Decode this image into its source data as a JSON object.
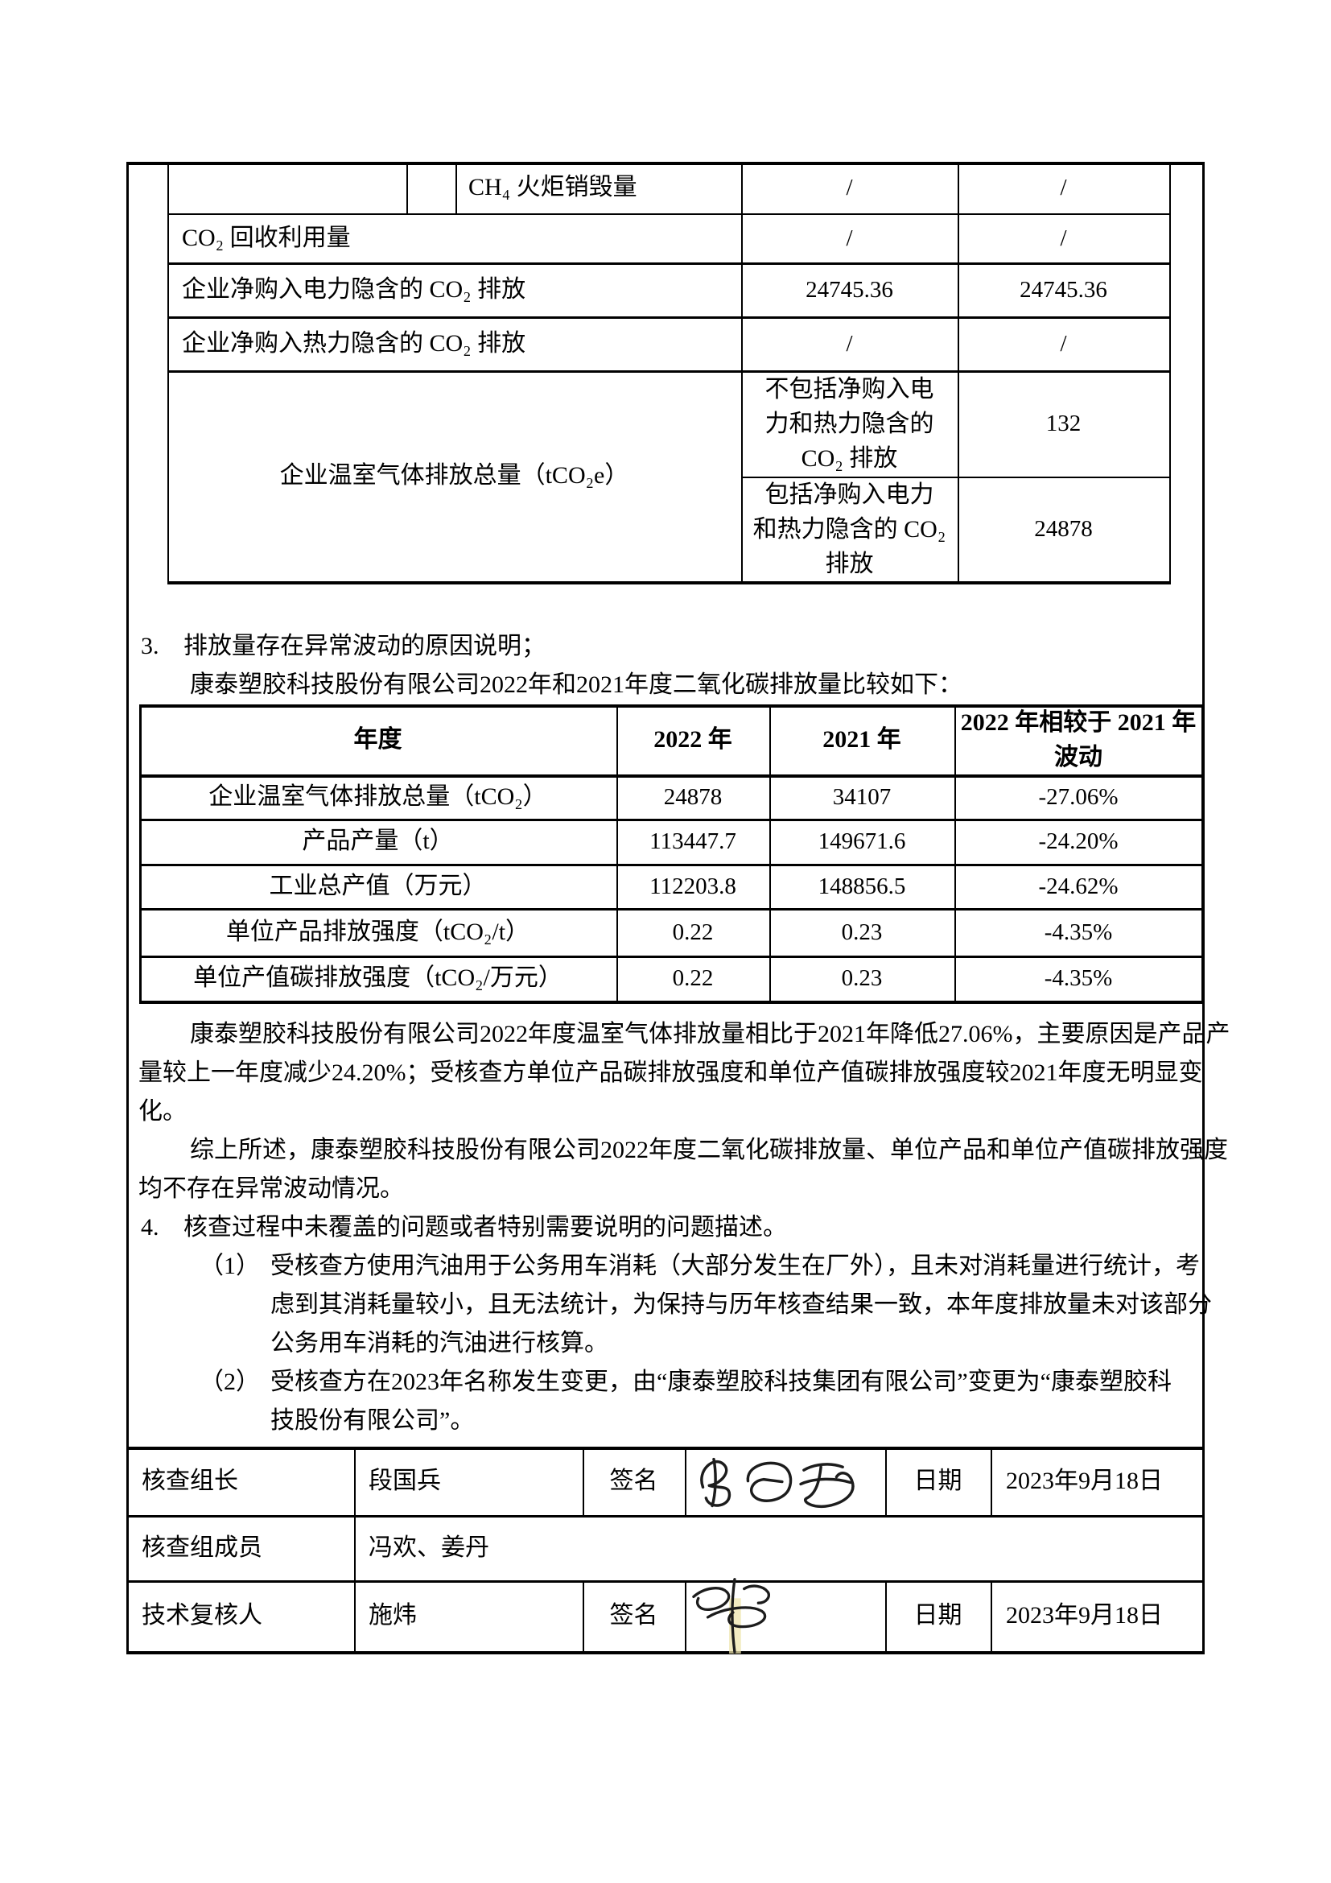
{
  "document": {
    "language": "zh-CN",
    "kind": "温室气体核查报告页"
  },
  "colors": {
    "text": "#000000",
    "border": "#000000",
    "background": "#ffffff",
    "signature_ink": "#1c1c1c",
    "signature_highlight": "#eee4ac"
  },
  "emissions_table": {
    "row1": {
      "label": "CH₄ 火炬销毁量",
      "v1": "/",
      "v2": "/"
    },
    "row2": {
      "label": "CO₂ 回收利用量",
      "v1": "/",
      "v2": "/"
    },
    "row3": {
      "label": "企业净购入电力隐含的 CO₂ 排放",
      "v1": "24745.36",
      "v2": "24745.36"
    },
    "row4": {
      "label": "企业净购入热力隐含的 CO₂ 排放",
      "v1": "/",
      "v2": "/"
    },
    "row5": {
      "label": "企业温室气体排放总量（tCO₂e）",
      "excl": {
        "l1": "不包括净购入电",
        "l2": "力和热力隐含的",
        "l3": "CO₂ 排放",
        "value": "132"
      },
      "incl": {
        "l1": "包括净购入电力",
        "l2": "和热力隐含的 CO₂",
        "l3": "排放",
        "value": "24878"
      }
    }
  },
  "section3": {
    "number": "3.",
    "title": "排放量存在异常波动的原因说明；",
    "intro": "康泰塑胶科技股份有限公司2022年和2021年度二氧化碳排放量比较如下："
  },
  "chart_data": {
    "type": "table",
    "title": "2022年和2021年度二氧化碳排放量比较",
    "columns": [
      "年度",
      "2022 年",
      "2021 年",
      "2022 年相较于 2021 年波动"
    ],
    "rows": [
      [
        "企业温室气体排放总量（tCO₂）",
        "24878",
        "34107",
        "-27.06%"
      ],
      [
        "产品产量（t）",
        "113447.7",
        "149671.6",
        "-24.20%"
      ],
      [
        "工业总产值（万元）",
        "112203.8",
        "148856.5",
        "-24.62%"
      ],
      [
        "单位产品排放强度（tCO₂/t）",
        "0.22",
        "0.23",
        "-4.35%"
      ],
      [
        "单位产值碳排放强度（tCO₂/万元）",
        "0.22",
        "0.23",
        "-4.35%"
      ]
    ]
  },
  "comparison_table": {
    "headers": {
      "c1": "年度",
      "c2": "2022 年",
      "c3": "2021 年",
      "c4a": "2022 年相较于 2021 年",
      "c4b": "波动"
    },
    "rows": [
      {
        "label": "企业温室气体排放总量（tCO₂）",
        "y2022": "24878",
        "y2021": "34107",
        "delta": "-27.06%"
      },
      {
        "label": "产品产量（t）",
        "y2022": "113447.7",
        "y2021": "149671.6",
        "delta": "-24.20%"
      },
      {
        "label": "工业总产值（万元）",
        "y2022": "112203.8",
        "y2021": "148856.5",
        "delta": "-24.62%"
      },
      {
        "label": "单位产品排放强度（tCO₂/t）",
        "y2022": "0.22",
        "y2021": "0.23",
        "delta": "-4.35%"
      },
      {
        "label": "单位产值碳排放强度（tCO₂/万元）",
        "y2022": "0.22",
        "y2021": "0.23",
        "delta": "-4.35%"
      }
    ]
  },
  "analysis": {
    "p1l1": "康泰塑胶科技股份有限公司2022年度温室气体排放量相比于2021年降低27.06%，主要原因是产品产",
    "p1l2": "量较上一年度减少24.20%；受核查方单位产品碳排放强度和单位产值碳排放强度较2021年度无明显变",
    "p1l3": "化。",
    "p2l1": "综上所述，康泰塑胶科技股份有限公司2022年度二氧化碳排放量、单位产品和单位产值碳排放强度",
    "p2l2": "均不存在异常波动情况。"
  },
  "section4": {
    "number": "4.",
    "title": "核查过程中未覆盖的问题或者特别需要说明的问题描述。",
    "item1": {
      "number": "（1）",
      "l1": "受核查方使用汽油用于公务用车消耗（大部分发生在厂外），且未对消耗量进行统计，考",
      "l2": "虑到其消耗量较小，且无法统计，为保持与历年核查结果一致，本年度排放量未对该部分",
      "l3": "公务用车消耗的汽油进行核算。"
    },
    "item2": {
      "number": "（2）",
      "l1": "受核查方在2023年名称发生变更，由“康泰塑胶科技集团有限公司”变更为“康泰塑胶科",
      "l2": "技股份有限公司”。"
    }
  },
  "signoff_table": {
    "row1": {
      "role": "核查组长",
      "name": "段国兵",
      "sign_label": "签名",
      "date_label": "日期",
      "date": "2023年9月18日"
    },
    "row2": {
      "role": "核查组成员",
      "name": "冯欢、姜丹"
    },
    "row3": {
      "role": "技术复核人",
      "name": "施炜",
      "sign_label": "签名",
      "date_label": "日期",
      "date": "2023年9月18日"
    }
  }
}
